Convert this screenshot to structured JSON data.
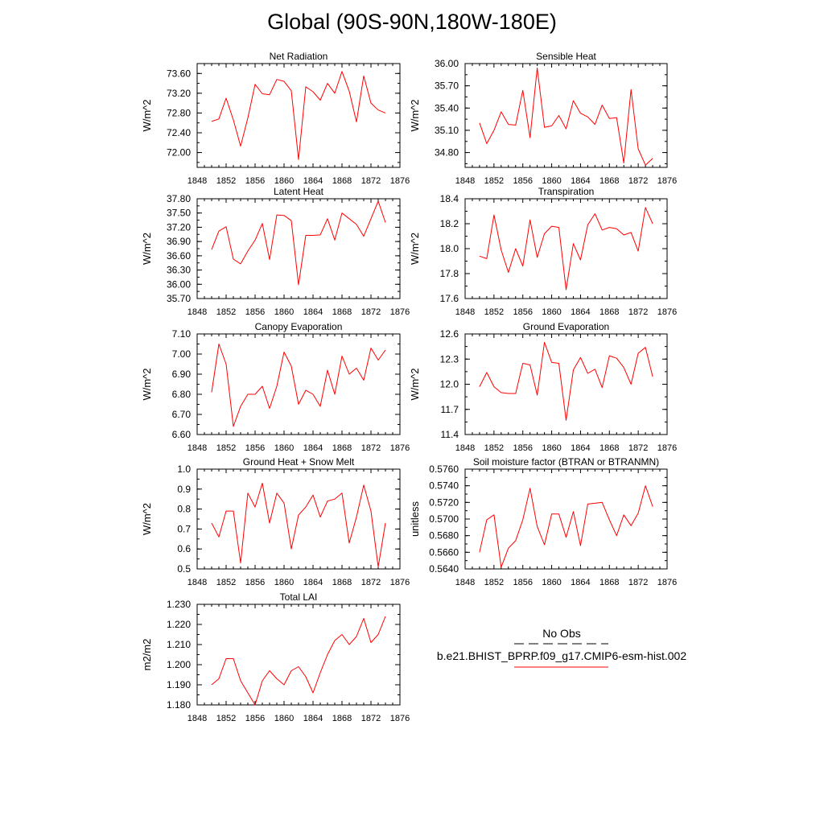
{
  "title": "Global (90S-90N,180W-180E)",
  "colors": {
    "series": "#ff0000",
    "obs": "#000000",
    "axis": "#000000"
  },
  "legend": {
    "obs_label": "No Obs",
    "model_label": "b.e21.BHIST_BPRP.f09_g17.CMIP6-esm-hist.002"
  },
  "chart_data": [
    {
      "type": "line",
      "title": "Net Radiation",
      "ylabel": "W/m^2",
      "xlim": [
        1848,
        1876
      ],
      "xticks": [
        1848,
        1852,
        1856,
        1860,
        1864,
        1868,
        1872,
        1876
      ],
      "ylim": [
        71.7,
        73.8
      ],
      "yticks": [
        "72.00",
        "72.40",
        "72.80",
        "73.20",
        "73.60"
      ],
      "x": [
        1850,
        1851,
        1852,
        1853,
        1854,
        1855,
        1856,
        1857,
        1858,
        1859,
        1860,
        1861,
        1862,
        1863,
        1864,
        1865,
        1866,
        1867,
        1868,
        1869,
        1870,
        1871,
        1872,
        1873,
        1874
      ],
      "series": [
        {
          "name": "b.e21.BHIST_BPRP.f09_g17.CMIP6-esm-hist.002",
          "values": [
            72.63,
            72.68,
            73.1,
            72.66,
            72.13,
            72.7,
            73.38,
            73.19,
            73.17,
            73.48,
            73.44,
            73.25,
            71.86,
            73.33,
            73.23,
            73.06,
            73.4,
            73.2,
            73.64,
            73.24,
            72.62,
            73.55,
            73.0,
            72.86,
            72.8
          ]
        }
      ]
    },
    {
      "type": "line",
      "title": "Sensible Heat",
      "ylabel": "W/m^2",
      "xlim": [
        1848,
        1876
      ],
      "xticks": [
        1848,
        1852,
        1856,
        1860,
        1864,
        1868,
        1872,
        1876
      ],
      "ylim": [
        34.6,
        36.0
      ],
      "yticks": [
        "34.80",
        "35.10",
        "35.40",
        "35.70",
        "36.00"
      ],
      "x": [
        1850,
        1851,
        1852,
        1853,
        1854,
        1855,
        1856,
        1857,
        1858,
        1859,
        1860,
        1861,
        1862,
        1863,
        1864,
        1865,
        1866,
        1867,
        1868,
        1869,
        1870,
        1871,
        1872,
        1873,
        1874
      ],
      "series": [
        {
          "name": "b.e21.BHIST_BPRP.f09_g17.CMIP6-esm-hist.002",
          "values": [
            35.2,
            34.92,
            35.1,
            35.35,
            35.18,
            35.17,
            35.64,
            35.0,
            35.94,
            35.14,
            35.16,
            35.3,
            35.12,
            35.5,
            35.33,
            35.28,
            35.18,
            35.44,
            35.26,
            35.27,
            34.66,
            35.65,
            34.85,
            34.63,
            34.72
          ]
        }
      ]
    },
    {
      "type": "line",
      "title": "Latent Heat",
      "ylabel": "W/m^2",
      "xlim": [
        1848,
        1876
      ],
      "xticks": [
        1848,
        1852,
        1856,
        1860,
        1864,
        1868,
        1872,
        1876
      ],
      "ylim": [
        35.7,
        37.8
      ],
      "yticks": [
        "35.70",
        "36.00",
        "36.30",
        "36.60",
        "36.90",
        "37.20",
        "37.50",
        "37.80"
      ],
      "x": [
        1850,
        1851,
        1852,
        1853,
        1854,
        1855,
        1856,
        1857,
        1858,
        1859,
        1860,
        1861,
        1862,
        1863,
        1864,
        1865,
        1866,
        1867,
        1868,
        1869,
        1870,
        1871,
        1872,
        1873,
        1874
      ],
      "series": [
        {
          "name": "b.e21.BHIST_BPRP.f09_g17.CMIP6-esm-hist.002",
          "values": [
            36.73,
            37.12,
            37.21,
            36.53,
            36.43,
            36.7,
            36.93,
            37.28,
            36.52,
            37.46,
            37.45,
            37.34,
            35.99,
            37.03,
            37.03,
            37.04,
            37.38,
            36.93,
            37.5,
            37.38,
            37.26,
            37.01,
            37.38,
            37.75,
            37.3
          ]
        }
      ]
    },
    {
      "type": "line",
      "title": "Transpiration",
      "ylabel": "W/m^2",
      "xlim": [
        1848,
        1876
      ],
      "xticks": [
        1848,
        1852,
        1856,
        1860,
        1864,
        1868,
        1872,
        1876
      ],
      "ylim": [
        17.6,
        18.4
      ],
      "yticks": [
        "17.6",
        "17.8",
        "18.0",
        "18.2",
        "18.4"
      ],
      "x": [
        1850,
        1851,
        1852,
        1853,
        1854,
        1855,
        1856,
        1857,
        1858,
        1859,
        1860,
        1861,
        1862,
        1863,
        1864,
        1865,
        1866,
        1867,
        1868,
        1869,
        1870,
        1871,
        1872,
        1873,
        1874
      ],
      "series": [
        {
          "name": "b.e21.BHIST_BPRP.f09_g17.CMIP6-esm-hist.002",
          "values": [
            17.94,
            17.92,
            18.27,
            17.99,
            17.81,
            18.0,
            17.86,
            18.23,
            17.93,
            18.12,
            18.18,
            18.17,
            17.67,
            18.04,
            17.91,
            18.19,
            18.28,
            18.15,
            18.17,
            18.16,
            18.11,
            18.13,
            17.98,
            18.33,
            18.2
          ]
        }
      ]
    },
    {
      "type": "line",
      "title": "Canopy Evaporation",
      "ylabel": "W/m^2",
      "xlim": [
        1848,
        1876
      ],
      "xticks": [
        1848,
        1852,
        1856,
        1860,
        1864,
        1868,
        1872,
        1876
      ],
      "ylim": [
        6.6,
        7.1
      ],
      "yticks": [
        "6.60",
        "6.70",
        "6.80",
        "6.90",
        "7.00",
        "7.10"
      ],
      "x": [
        1850,
        1851,
        1852,
        1853,
        1854,
        1855,
        1856,
        1857,
        1858,
        1859,
        1860,
        1861,
        1862,
        1863,
        1864,
        1865,
        1866,
        1867,
        1868,
        1869,
        1870,
        1871,
        1872,
        1873,
        1874
      ],
      "series": [
        {
          "name": "b.e21.BHIST_BPRP.f09_g17.CMIP6-esm-hist.002",
          "values": [
            6.81,
            7.05,
            6.95,
            6.64,
            6.74,
            6.8,
            6.8,
            6.84,
            6.73,
            6.84,
            7.01,
            6.94,
            6.75,
            6.82,
            6.8,
            6.74,
            6.92,
            6.8,
            6.99,
            6.9,
            6.93,
            6.87,
            7.03,
            6.97,
            7.02
          ]
        }
      ]
    },
    {
      "type": "line",
      "title": "Ground Evaporation",
      "ylabel": "W/m^2",
      "xlim": [
        1848,
        1876
      ],
      "xticks": [
        1848,
        1852,
        1856,
        1860,
        1864,
        1868,
        1872,
        1876
      ],
      "ylim": [
        11.4,
        12.6
      ],
      "yticks": [
        "11.4",
        "11.7",
        "12.0",
        "12.3",
        "12.6"
      ],
      "x": [
        1850,
        1851,
        1852,
        1853,
        1854,
        1855,
        1856,
        1857,
        1858,
        1859,
        1860,
        1861,
        1862,
        1863,
        1864,
        1865,
        1866,
        1867,
        1868,
        1869,
        1870,
        1871,
        1872,
        1873,
        1874
      ],
      "series": [
        {
          "name": "b.e21.BHIST_BPRP.f09_g17.CMIP6-esm-hist.002",
          "values": [
            11.97,
            12.14,
            11.97,
            11.9,
            11.89,
            11.89,
            12.25,
            12.23,
            11.87,
            12.5,
            12.26,
            12.25,
            11.57,
            12.17,
            12.32,
            12.13,
            12.18,
            11.96,
            12.34,
            12.31,
            12.2,
            12.0,
            12.37,
            12.44,
            12.09
          ]
        }
      ]
    },
    {
      "type": "line",
      "title": "Ground Heat + Snow Melt",
      "ylabel": "W/m^2",
      "xlim": [
        1848,
        1876
      ],
      "xticks": [
        1848,
        1852,
        1856,
        1860,
        1864,
        1868,
        1872,
        1876
      ],
      "ylim": [
        0.5,
        1.0
      ],
      "yticks": [
        "0.5",
        "0.6",
        "0.7",
        "0.8",
        "0.9",
        "1.0"
      ],
      "x": [
        1850,
        1851,
        1852,
        1853,
        1854,
        1855,
        1856,
        1857,
        1858,
        1859,
        1860,
        1861,
        1862,
        1863,
        1864,
        1865,
        1866,
        1867,
        1868,
        1869,
        1870,
        1871,
        1872,
        1873,
        1874
      ],
      "series": [
        {
          "name": "b.e21.BHIST_BPRP.f09_g17.CMIP6-esm-hist.002",
          "values": [
            0.73,
            0.66,
            0.79,
            0.79,
            0.53,
            0.88,
            0.81,
            0.93,
            0.73,
            0.88,
            0.83,
            0.6,
            0.77,
            0.81,
            0.87,
            0.76,
            0.84,
            0.85,
            0.88,
            0.63,
            0.76,
            0.92,
            0.79,
            0.51,
            0.73
          ]
        }
      ]
    },
    {
      "type": "line",
      "title": "Soil moisture factor (BTRAN or BTRANMN)",
      "ylabel": "unitless",
      "xlim": [
        1848,
        1876
      ],
      "xticks": [
        1848,
        1852,
        1856,
        1860,
        1864,
        1868,
        1872,
        1876
      ],
      "ylim": [
        0.564,
        0.576
      ],
      "yticks": [
        "0.5640",
        "0.5660",
        "0.5680",
        "0.5700",
        "0.5720",
        "0.5740",
        "0.5760"
      ],
      "x": [
        1850,
        1851,
        1852,
        1853,
        1854,
        1855,
        1856,
        1857,
        1858,
        1859,
        1860,
        1861,
        1862,
        1863,
        1864,
        1865,
        1866,
        1867,
        1868,
        1869,
        1870,
        1871,
        1872,
        1873,
        1874
      ],
      "series": [
        {
          "name": "b.e21.BHIST_BPRP.f09_g17.CMIP6-esm-hist.002",
          "values": [
            0.566,
            0.5699,
            0.5705,
            0.5642,
            0.5665,
            0.5674,
            0.5699,
            0.5737,
            0.5691,
            0.5669,
            0.5706,
            0.5706,
            0.5678,
            0.5709,
            0.5668,
            0.5718,
            0.5719,
            0.572,
            0.5699,
            0.568,
            0.5705,
            0.5692,
            0.5707,
            0.574,
            0.5715
          ]
        }
      ]
    },
    {
      "type": "line",
      "title": "Total LAI",
      "ylabel": "m2/m2",
      "xlim": [
        1848,
        1876
      ],
      "xticks": [
        1848,
        1852,
        1856,
        1860,
        1864,
        1868,
        1872,
        1876
      ],
      "ylim": [
        1.18,
        1.23
      ],
      "yticks": [
        "1.180",
        "1.190",
        "1.200",
        "1.210",
        "1.220",
        "1.230"
      ],
      "x": [
        1850,
        1851,
        1852,
        1853,
        1854,
        1855,
        1856,
        1857,
        1858,
        1859,
        1860,
        1861,
        1862,
        1863,
        1864,
        1865,
        1866,
        1867,
        1868,
        1869,
        1870,
        1871,
        1872,
        1873,
        1874
      ],
      "series": [
        {
          "name": "b.e21.BHIST_BPRP.f09_g17.CMIP6-esm-hist.002",
          "values": [
            1.19,
            1.193,
            1.203,
            1.203,
            1.192,
            1.186,
            1.18,
            1.192,
            1.197,
            1.193,
            1.19,
            1.197,
            1.199,
            1.194,
            1.186,
            1.196,
            1.205,
            1.212,
            1.215,
            1.21,
            1.214,
            1.223,
            1.211,
            1.215,
            1.224
          ]
        }
      ]
    }
  ]
}
